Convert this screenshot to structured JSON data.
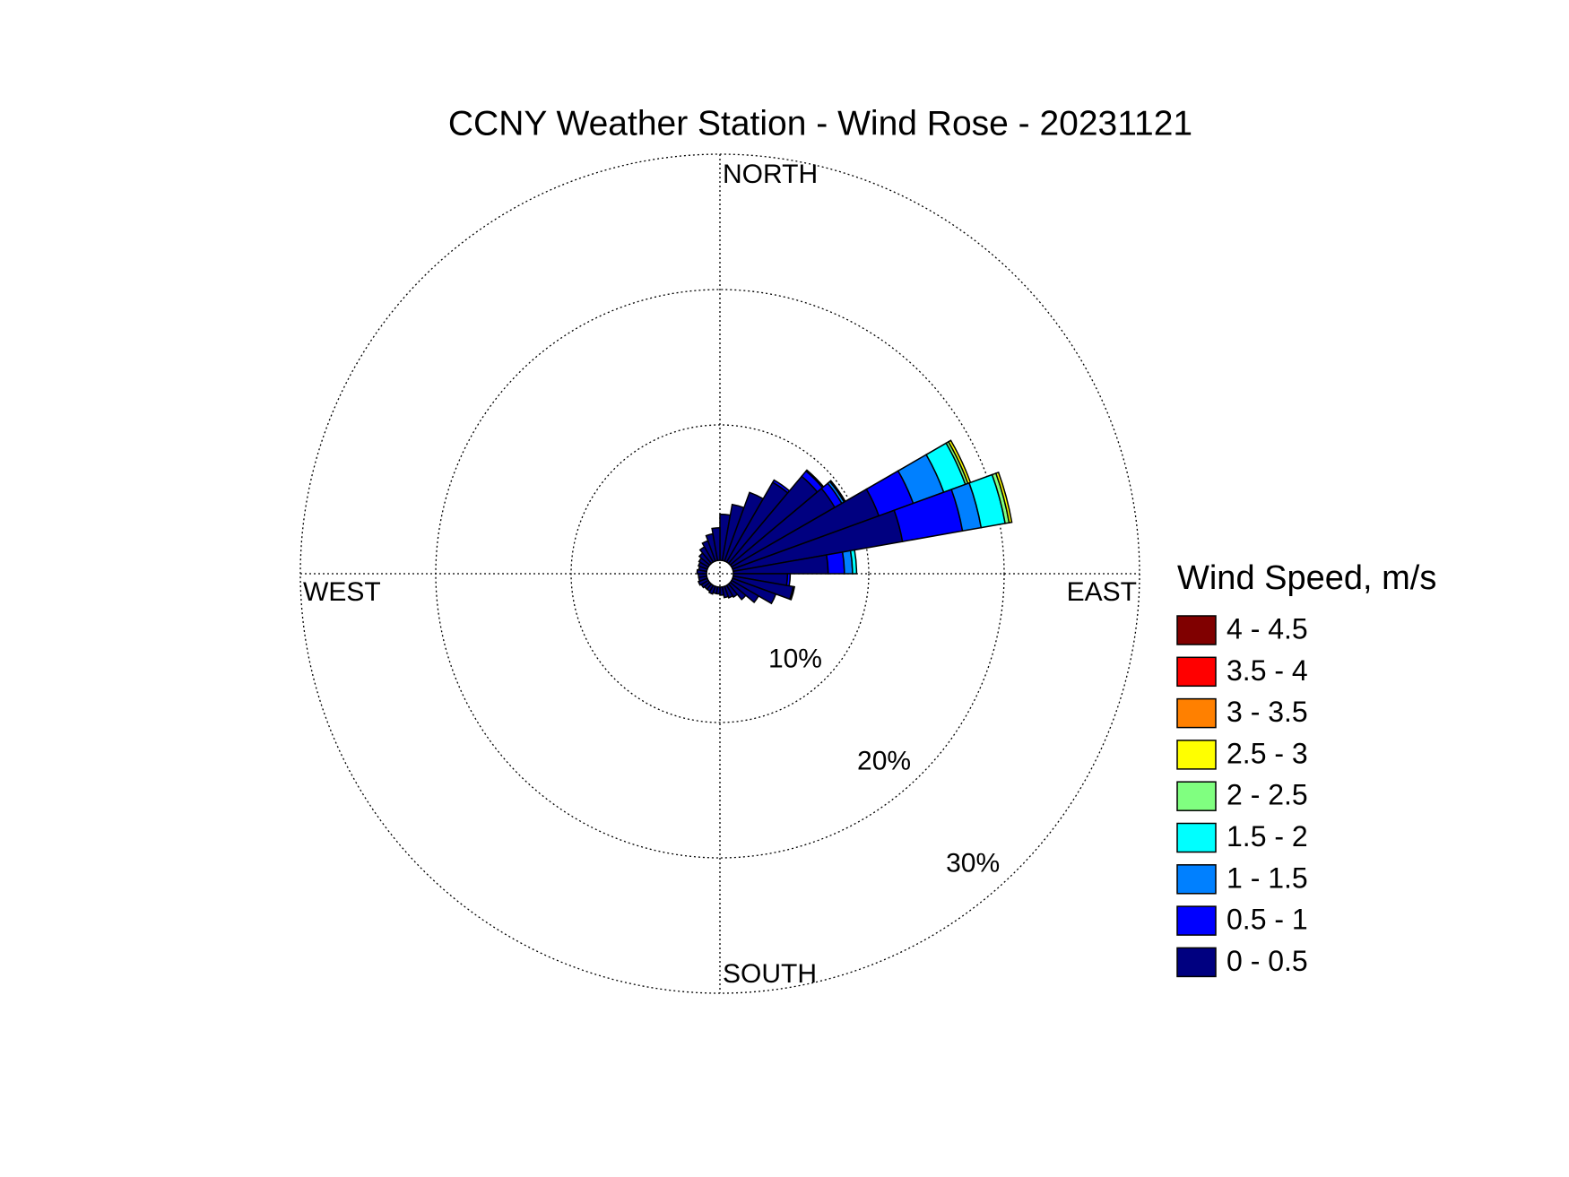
{
  "chart_data": {
    "type": "windrose",
    "title": "CCNY Weather Station - Wind Rose - 20231121",
    "legend_title": "Wind Speed, m/s",
    "direction_labels": [
      "NORTH",
      "EAST",
      "SOUTH",
      "WEST"
    ],
    "directions": [
      5,
      15,
      25,
      35,
      45,
      55,
      65,
      75,
      85,
      95,
      105,
      115,
      125,
      135,
      145,
      155,
      165,
      175,
      185,
      195,
      205,
      215,
      225,
      235,
      245,
      255,
      265,
      275,
      285,
      295,
      305,
      315,
      325,
      335,
      345,
      355
    ],
    "rlim": [
      0,
      30
    ],
    "rticks": [
      {
        "value": 10,
        "label": "10%"
      },
      {
        "value": 20,
        "label": "20%"
      },
      {
        "value": 30,
        "label": "30%"
      }
    ],
    "grid": true,
    "series": [
      {
        "name": "0 - 0.5",
        "color": "#000080",
        "values": [
          3.4,
          4.2,
          5.4,
          6.8,
          8.4,
          8.8,
          11.5,
          12.7,
          7.0,
          4.0,
          4.5,
          3.4,
          2.3,
          1.5,
          1.0,
          0.9,
          0.8,
          0.6,
          0.5,
          0.5,
          0.6,
          0.5,
          0.5,
          0.6,
          0.7,
          0.6,
          0.6,
          0.7,
          0.6,
          0.7,
          0.8,
          1.0,
          1.3,
          1.6,
          2.0,
          2.4
        ]
      },
      {
        "name": "0.5 - 1",
        "color": "#0000ff",
        "values": [
          0,
          0,
          0,
          0.2,
          0.5,
          0.6,
          2.7,
          4.5,
          1.2,
          0.2,
          0.1,
          0,
          0,
          0,
          0,
          0,
          0,
          0,
          0,
          0,
          0,
          0,
          0,
          0,
          0,
          0,
          0,
          0,
          0,
          0,
          0,
          0,
          0,
          0,
          0,
          0
        ]
      },
      {
        "name": "1 - 1.5",
        "color": "#0080ff",
        "values": [
          0,
          0,
          0,
          0,
          0.1,
          0.2,
          2.4,
          1.4,
          0.6,
          0,
          0,
          0,
          0,
          0,
          0,
          0,
          0,
          0,
          0,
          0,
          0,
          0,
          0,
          0,
          0,
          0,
          0,
          0,
          0,
          0,
          0,
          0,
          0,
          0,
          0,
          0
        ]
      },
      {
        "name": "1.5 - 2",
        "color": "#00ffff",
        "values": [
          0,
          0,
          0,
          0,
          0,
          0.1,
          1.7,
          1.8,
          0.3,
          0,
          0,
          0,
          0,
          0,
          0,
          0,
          0,
          0,
          0,
          0,
          0,
          0,
          0,
          0,
          0,
          0,
          0,
          0,
          0,
          0,
          0,
          0,
          0,
          0,
          0,
          0
        ]
      },
      {
        "name": "2 - 2.5",
        "color": "#80ff80",
        "values": [
          0,
          0,
          0,
          0,
          0,
          0,
          0.2,
          0.3,
          0,
          0,
          0,
          0,
          0,
          0,
          0,
          0,
          0,
          0,
          0,
          0,
          0,
          0,
          0,
          0,
          0,
          0,
          0,
          0,
          0,
          0,
          0,
          0,
          0,
          0,
          0,
          0
        ]
      },
      {
        "name": "2.5 - 3",
        "color": "#ffff00",
        "values": [
          0,
          0,
          0,
          0,
          0,
          0,
          0.2,
          0.2,
          0,
          0,
          0,
          0,
          0,
          0,
          0,
          0,
          0,
          0,
          0,
          0,
          0,
          0,
          0,
          0,
          0,
          0,
          0,
          0,
          0,
          0,
          0,
          0,
          0,
          0,
          0,
          0
        ]
      },
      {
        "name": "3 - 3.5",
        "color": "#ff8000",
        "values": [
          0,
          0,
          0,
          0,
          0,
          0,
          0,
          0,
          0,
          0,
          0,
          0,
          0,
          0,
          0,
          0,
          0,
          0,
          0,
          0,
          0,
          0,
          0,
          0,
          0,
          0,
          0,
          0,
          0,
          0,
          0,
          0,
          0,
          0,
          0,
          0
        ]
      },
      {
        "name": "3.5 - 4",
        "color": "#ff0000",
        "values": [
          0,
          0,
          0,
          0,
          0,
          0,
          0,
          0,
          0,
          0,
          0,
          0,
          0,
          0,
          0,
          0,
          0,
          0,
          0,
          0,
          0,
          0,
          0,
          0,
          0,
          0,
          0,
          0,
          0,
          0,
          0,
          0,
          0,
          0,
          0,
          0
        ]
      },
      {
        "name": "4 - 4.5",
        "color": "#800000",
        "values": [
          0,
          0,
          0,
          0,
          0,
          0,
          0,
          0,
          0,
          0,
          0,
          0,
          0,
          0,
          0,
          0,
          0,
          0,
          0,
          0,
          0,
          0,
          0,
          0,
          0,
          0,
          0,
          0,
          0,
          0,
          0,
          0,
          0,
          0,
          0,
          0
        ]
      }
    ]
  }
}
